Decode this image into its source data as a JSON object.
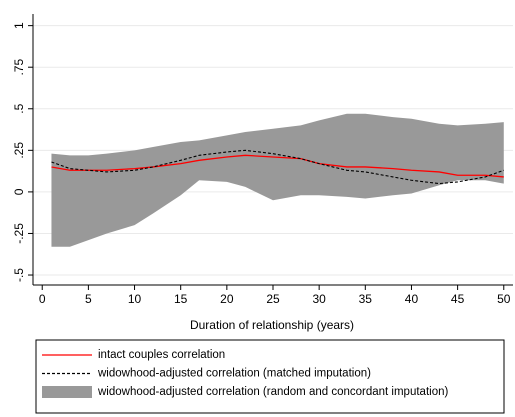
{
  "chart_data": {
    "type": "line",
    "x_label": "Duration of relationship (years)",
    "x": [
      1,
      3,
      5,
      7,
      10,
      12,
      15,
      17,
      20,
      22,
      25,
      28,
      30,
      33,
      35,
      38,
      40,
      43,
      45,
      48,
      50
    ],
    "series": [
      {
        "name": "intact couples correlation",
        "color": "#ff0000",
        "style": "solid",
        "values": [
          0.15,
          0.13,
          0.13,
          0.13,
          0.14,
          0.15,
          0.17,
          0.19,
          0.21,
          0.22,
          0.21,
          0.2,
          0.17,
          0.15,
          0.15,
          0.14,
          0.13,
          0.12,
          0.1,
          0.1,
          0.09
        ]
      },
      {
        "name": "widowhood-adjusted correlation (matched imputation)",
        "color": "#000000",
        "style": "dashed",
        "values": [
          0.18,
          0.14,
          0.13,
          0.12,
          0.13,
          0.15,
          0.19,
          0.22,
          0.24,
          0.25,
          0.23,
          0.2,
          0.17,
          0.13,
          0.12,
          0.09,
          0.07,
          0.05,
          0.06,
          0.09,
          0.13
        ]
      },
      {
        "name": "widowhood-adjusted correlation (random and concordant imputation)",
        "color": "#999999",
        "style": "range",
        "high": [
          0.23,
          0.22,
          0.22,
          0.23,
          0.25,
          0.27,
          0.3,
          0.31,
          0.34,
          0.36,
          0.38,
          0.4,
          0.43,
          0.47,
          0.47,
          0.45,
          0.44,
          0.41,
          0.4,
          0.41,
          0.42
        ],
        "low": [
          -0.33,
          -0.33,
          -0.29,
          -0.25,
          -0.2,
          -0.13,
          -0.02,
          0.07,
          0.06,
          0.03,
          -0.05,
          -0.02,
          -0.02,
          -0.03,
          -0.04,
          -0.02,
          -0.01,
          0.04,
          0.07,
          0.07,
          0.05
        ]
      }
    ],
    "xlim": [
      -1,
      51
    ],
    "xticks": [
      0,
      5,
      10,
      15,
      20,
      25,
      30,
      35,
      40,
      45,
      50
    ],
    "ylim": [
      -0.56,
      1.07
    ],
    "yticks": [
      {
        "value": -0.5,
        "label": "-.5"
      },
      {
        "value": -0.25,
        "label": "-.25"
      },
      0,
      {
        "value": 0.25,
        "label": ".25"
      },
      {
        "value": 0.5,
        "label": ".5"
      },
      {
        "value": 0.75,
        "label": ".75"
      },
      1
    ],
    "grid": true,
    "legend": "bottom"
  }
}
